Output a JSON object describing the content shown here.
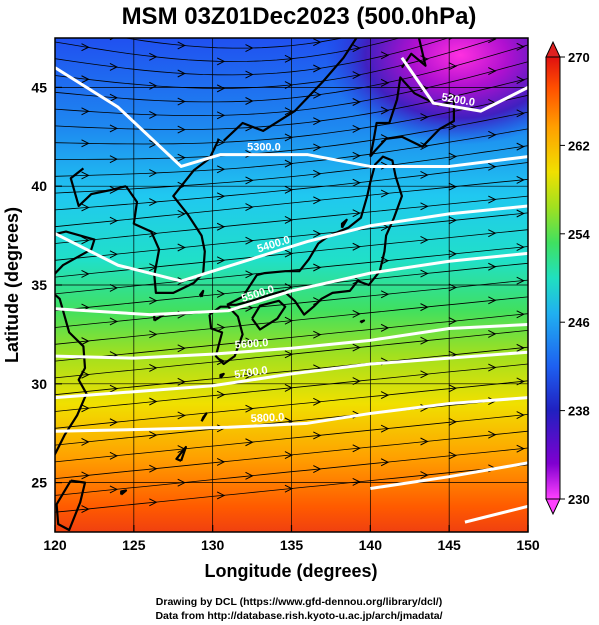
{
  "title": "MSM 03Z01Dec2023 (500.0hPa)",
  "x_axis": {
    "label": "Longitude (degrees)",
    "range": [
      120,
      150
    ],
    "ticks": [
      120,
      125,
      130,
      135,
      140,
      145,
      150
    ],
    "tick_labels": [
      "120",
      "125",
      "130",
      "135",
      "140",
      "145",
      "150"
    ]
  },
  "y_axis": {
    "label": "Latitude  (degrees)",
    "range": [
      22.5,
      47.5
    ],
    "ticks": [
      25,
      30,
      35,
      40,
      45
    ],
    "tick_labels": [
      "25",
      "30",
      "35",
      "40",
      "45"
    ]
  },
  "colorbar": {
    "range": [
      230,
      270
    ],
    "ticks": [
      230,
      238,
      246,
      254,
      262,
      270
    ],
    "tick_labels": [
      "230",
      "238",
      "246",
      "254",
      "262",
      "270"
    ],
    "colors": [
      "#ff40ff",
      "#8000d0",
      "#2020c0",
      "#1e60f0",
      "#20b0f0",
      "#20e0c0",
      "#40e060",
      "#a0e020",
      "#f0e000",
      "#ffa000",
      "#ff5000",
      "#e01010"
    ]
  },
  "contours": [
    {
      "label": "5200.0",
      "points": [
        [
          142.0,
          46.5
        ],
        [
          144.0,
          44.2
        ],
        [
          147.0,
          43.8
        ],
        [
          150.0,
          45.0
        ]
      ]
    },
    {
      "label": "5300.0",
      "points": [
        [
          120.0,
          46.0
        ],
        [
          124.0,
          44.0
        ],
        [
          128.0,
          41.0
        ],
        [
          130.5,
          41.6
        ],
        [
          136.0,
          41.6
        ],
        [
          140.0,
          41.0
        ],
        [
          145.0,
          41.0
        ],
        [
          150.0,
          41.5
        ]
      ]
    },
    {
      "label": "5400.0",
      "points": [
        [
          120.0,
          37.6
        ],
        [
          124.0,
          36.0
        ],
        [
          128.0,
          35.2
        ],
        [
          132.0,
          36.2
        ],
        [
          136.0,
          37.2
        ],
        [
          140.0,
          38.0
        ],
        [
          145.0,
          38.6
        ],
        [
          150.0,
          39.0
        ]
      ]
    },
    {
      "label": "5500.0",
      "points": [
        [
          120.0,
          33.8
        ],
        [
          126.0,
          33.5
        ],
        [
          131.0,
          33.7
        ],
        [
          135.0,
          34.7
        ],
        [
          140.0,
          35.6
        ],
        [
          145.0,
          36.2
        ],
        [
          150.0,
          36.6
        ]
      ]
    },
    {
      "label": "5600.0",
      "points": [
        [
          120.0,
          31.4
        ],
        [
          125.0,
          31.3
        ],
        [
          130.0,
          31.5
        ],
        [
          135.0,
          31.8
        ],
        [
          140.0,
          32.2
        ],
        [
          145.0,
          32.8
        ],
        [
          150.0,
          33.0
        ]
      ]
    },
    {
      "label": "5700.0",
      "points": [
        [
          120.0,
          29.3
        ],
        [
          125.0,
          29.6
        ],
        [
          130.0,
          29.9
        ],
        [
          135.0,
          30.5
        ],
        [
          140.0,
          31.0
        ],
        [
          145.0,
          31.3
        ],
        [
          150.0,
          31.6
        ]
      ]
    },
    {
      "label": "5800.0",
      "points": [
        [
          120.0,
          27.6
        ],
        [
          126.0,
          27.7
        ],
        [
          131.0,
          27.8
        ],
        [
          136.0,
          28.0
        ],
        [
          140.0,
          28.5
        ],
        [
          145.0,
          29.0
        ],
        [
          150.0,
          29.3
        ]
      ]
    },
    {
      "label": "",
      "points": [
        [
          140.0,
          24.7
        ],
        [
          145.0,
          25.3
        ],
        [
          150.0,
          26.0
        ]
      ]
    },
    {
      "label": "",
      "points": [
        [
          146.0,
          23.0
        ],
        [
          150.0,
          23.8
        ]
      ]
    }
  ],
  "credits": {
    "line1": "Drawing by DCL (https://www.gfd-dennou.org/library/dcl/)",
    "line2": "Data from http://database.rish.kyoto-u.ac.jp/arch/jmadata/"
  }
}
